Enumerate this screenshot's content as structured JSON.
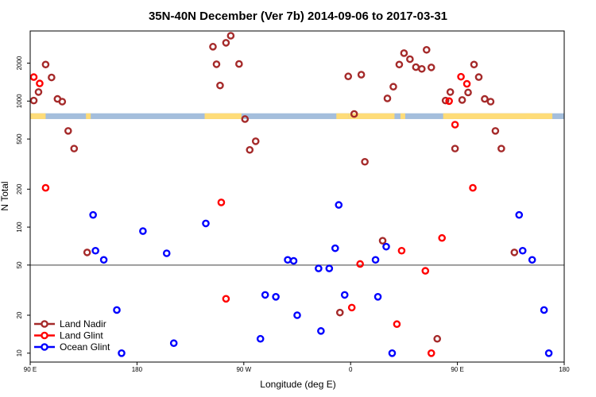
{
  "chart_data": {
    "type": "scatter",
    "title": "35N-40N December (Ver 7b)   2014-09-06 to 2017-03-31",
    "xlabel": "Longitude (deg E)",
    "ylabel": "N Total",
    "x_scale": "linear",
    "y_scale": "log",
    "xlim": [
      90,
      540
    ],
    "ylim": [
      8.5,
      3600
    ],
    "x_ticks": [
      {
        "value": 90,
        "label": "90 E"
      },
      {
        "value": 180,
        "label": "180"
      },
      {
        "value": 270,
        "label": "90 W"
      },
      {
        "value": 360,
        "label": "0"
      },
      {
        "value": 450,
        "label": "90 E"
      },
      {
        "value": 540,
        "label": "180"
      }
    ],
    "y_ticks": [
      10,
      20,
      50,
      100,
      200,
      500,
      1000,
      2000
    ],
    "reference_line": 50,
    "land_strip": {
      "ymin": 720,
      "ymax": 800,
      "ocean_color": "#a4bedc",
      "land_color": "#fedc78",
      "land_ranges": [
        [
          90,
          103
        ],
        [
          137,
          141
        ],
        [
          237,
          268
        ],
        [
          348,
          358
        ],
        [
          358,
          397
        ],
        [
          402,
          406
        ],
        [
          438,
          530
        ],
        [
          508,
          512
        ]
      ]
    },
    "legend_position": "bottom-left",
    "series": [
      {
        "name": "Land Nadir",
        "color": "#a52a2a",
        "points": [
          [
            93,
            1010
          ],
          [
            97,
            1180
          ],
          [
            103,
            1950
          ],
          [
            108,
            1540
          ],
          [
            113,
            1040
          ],
          [
            117,
            990
          ],
          [
            122,
            580
          ],
          [
            127,
            420
          ],
          [
            138,
            63
          ],
          [
            244,
            2700
          ],
          [
            247,
            1960
          ],
          [
            250,
            1330
          ],
          [
            255,
            2900
          ],
          [
            259,
            3300
          ],
          [
            266,
            1970
          ],
          [
            271,
            720
          ],
          [
            275,
            410
          ],
          [
            280,
            480
          ],
          [
            351,
            21
          ],
          [
            358,
            1570
          ],
          [
            363,
            790
          ],
          [
            369,
            1620
          ],
          [
            372,
            330
          ],
          [
            387,
            78
          ],
          [
            391,
            1050
          ],
          [
            396,
            1300
          ],
          [
            401,
            1950
          ],
          [
            405,
            2400
          ],
          [
            410,
            2150
          ],
          [
            415,
            1860
          ],
          [
            420,
            1800
          ],
          [
            424,
            2550
          ],
          [
            428,
            1850
          ],
          [
            433,
            13
          ],
          [
            440,
            1010
          ],
          [
            444,
            1180
          ],
          [
            448,
            420
          ],
          [
            454,
            1020
          ],
          [
            459,
            1170
          ],
          [
            464,
            1950
          ],
          [
            468,
            1550
          ],
          [
            473,
            1040
          ],
          [
            478,
            990
          ],
          [
            482,
            580
          ],
          [
            487,
            420
          ],
          [
            498,
            63
          ]
        ]
      },
      {
        "name": "Land Glint",
        "color": "#ff0000",
        "points": [
          [
            93,
            1550
          ],
          [
            98,
            1380
          ],
          [
            103,
            205
          ],
          [
            251,
            157
          ],
          [
            255,
            27
          ],
          [
            361,
            23
          ],
          [
            368,
            51
          ],
          [
            399,
            17
          ],
          [
            403,
            65
          ],
          [
            423,
            45
          ],
          [
            428,
            10
          ],
          [
            437,
            82
          ],
          [
            443,
            1000
          ],
          [
            448,
            650
          ],
          [
            453,
            1560
          ],
          [
            458,
            1370
          ],
          [
            463,
            205
          ]
        ]
      },
      {
        "name": "Ocean Glint",
        "color": "#0000ff",
        "points": [
          [
            143,
            125
          ],
          [
            145,
            65
          ],
          [
            152,
            55
          ],
          [
            163,
            22
          ],
          [
            167,
            10
          ],
          [
            185,
            93
          ],
          [
            205,
            62
          ],
          [
            211,
            12
          ],
          [
            238,
            107
          ],
          [
            284,
            13
          ],
          [
            288,
            29
          ],
          [
            297,
            28
          ],
          [
            307,
            55
          ],
          [
            312,
            54
          ],
          [
            315,
            20
          ],
          [
            333,
            47
          ],
          [
            335,
            15
          ],
          [
            342,
            47
          ],
          [
            347,
            68
          ],
          [
            350,
            150
          ],
          [
            355,
            29
          ],
          [
            381,
            55
          ],
          [
            383,
            28
          ],
          [
            390,
            70
          ],
          [
            395,
            10
          ],
          [
            502,
            125
          ],
          [
            505,
            65
          ],
          [
            513,
            55
          ],
          [
            523,
            22
          ],
          [
            527,
            10
          ]
        ]
      }
    ]
  }
}
